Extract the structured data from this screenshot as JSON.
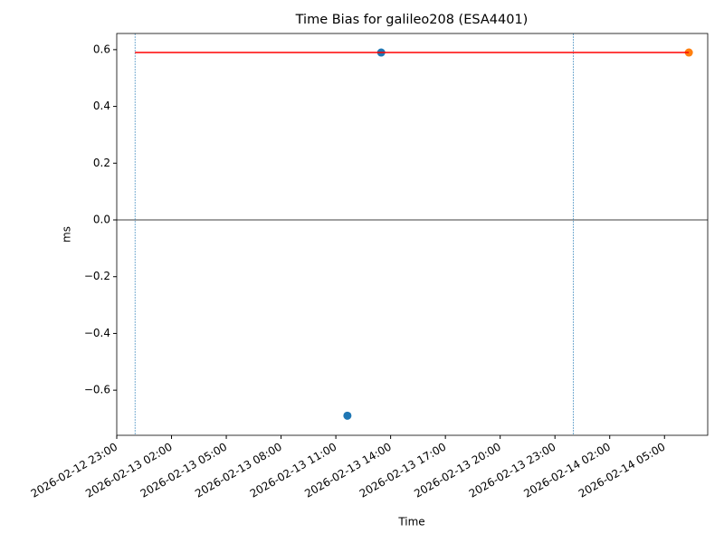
{
  "chart_data": {
    "type": "scatter",
    "title": "Time Bias for galileo208 (ESA4401)",
    "x_label": "Time",
    "y_label": "ms",
    "series": [
      {
        "color": "#1f77b4",
        "mode": "markers",
        "x": [
          "2026-02-13 11:38",
          "2026-02-13 13:29"
        ],
        "values": [
          -0.69,
          0.59
        ]
      },
      {
        "color": "#ff7f0e",
        "mode": "markers",
        "x": [
          "2026-02-14 06:20"
        ],
        "values": [
          0.59
        ]
      },
      {
        "color": "#ff0000",
        "mode": "line",
        "x": [
          "2026-02-13 00:00",
          "2026-02-14 06:20"
        ],
        "values": [
          0.59,
          0.59
        ]
      }
    ],
    "vlines": {
      "color": "#1f77b4",
      "x": [
        "2026-02-13 00:00",
        "2026-02-14 00:00"
      ]
    },
    "hline": {
      "color": "#000000",
      "value": 0
    },
    "xlim": [
      "2026-02-12 23:00",
      "2026-02-14 07:22"
    ],
    "xticks": [
      "2026-02-12 23:00",
      "2026-02-13 02:00",
      "2026-02-13 05:00",
      "2026-02-13 08:00",
      "2026-02-13 11:00",
      "2026-02-13 14:00",
      "2026-02-13 17:00",
      "2026-02-13 20:00",
      "2026-02-13 23:00",
      "2026-02-14 02:00",
      "2026-02-14 05:00"
    ],
    "ylim": [
      -0.759,
      0.657
    ],
    "yticks": [
      {
        "value": -0.6,
        "label": "−0.6"
      },
      {
        "value": -0.4,
        "label": "−0.4"
      },
      {
        "value": -0.2,
        "label": "−0.2"
      },
      {
        "value": 0,
        "label": "0.0"
      },
      0.2,
      0.4,
      0.6
    ]
  }
}
